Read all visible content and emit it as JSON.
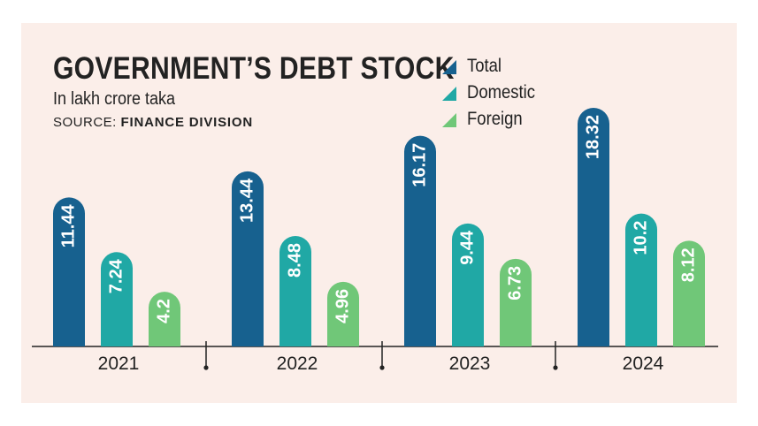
{
  "title": "GOVERNMENT’S DEBT STOCK",
  "subtitle": "In lakh crore taka",
  "source_prefix": "SOURCE: ",
  "source_name": "FINANCE DIVISION",
  "colors": {
    "total": "#17618f",
    "domestic": "#20a8a5",
    "foreign": "#70c778",
    "panel": "#fbeee9"
  },
  "chart_data": {
    "type": "bar",
    "title": "GOVERNMENT’S DEBT STOCK",
    "subtitle": "In lakh crore taka",
    "categories": [
      "2021",
      "2022",
      "2023",
      "2024"
    ],
    "series": [
      {
        "name": "Total",
        "values": [
          11.44,
          13.44,
          16.17,
          18.32
        ],
        "labels": [
          "11.44",
          "13.44",
          "16.17",
          "18.32"
        ]
      },
      {
        "name": "Domestic",
        "values": [
          7.24,
          8.48,
          9.44,
          10.2
        ],
        "labels": [
          "7.24",
          "8.48",
          "9.44",
          "10.2"
        ]
      },
      {
        "name": "Foreign",
        "values": [
          4.2,
          4.96,
          6.73,
          8.12
        ],
        "labels": [
          "4.2",
          "4.96",
          "6.73",
          "8.12"
        ]
      }
    ],
    "ylim": [
      0,
      18.32
    ],
    "grid": false,
    "legend": "top-right"
  }
}
